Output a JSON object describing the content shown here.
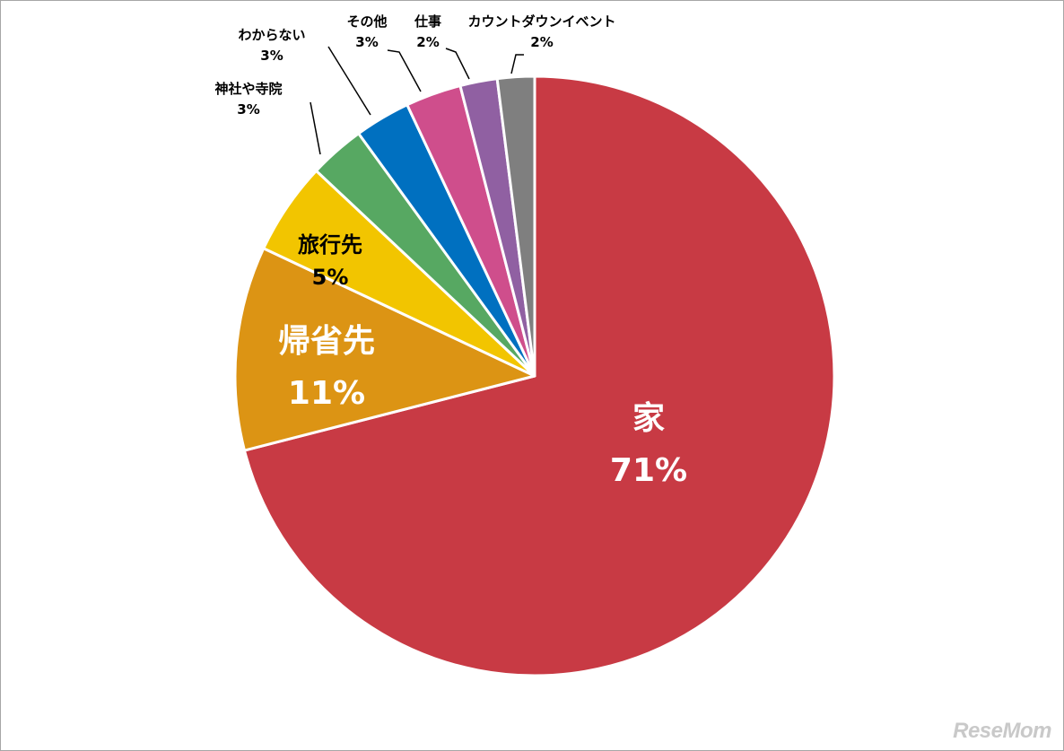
{
  "chart_data": {
    "type": "pie",
    "start": "top, clockwise",
    "slices": [
      {
        "label": "家",
        "value": 71,
        "display": "71%",
        "color": "#c83a44",
        "label_style": "inside-large",
        "label_color": "#ffffff"
      },
      {
        "label": "帰省先",
        "value": 11,
        "display": "11%",
        "color": "#dc9414",
        "label_style": "inside-large",
        "label_color": "#ffffff"
      },
      {
        "label": "旅行先",
        "value": 5,
        "display": "5%",
        "color": "#f2c500",
        "label_style": "inside-medium",
        "label_color": "#000000"
      },
      {
        "label": "神社や寺院",
        "value": 3,
        "display": "3%",
        "color": "#57a862",
        "label_style": "callout",
        "label_color": "#000000"
      },
      {
        "label": "わからない",
        "value": 3,
        "display": "3%",
        "color": "#0070c0",
        "label_style": "callout",
        "label_color": "#000000"
      },
      {
        "label": "その他",
        "value": 3,
        "display": "3%",
        "color": "#cf4e8c",
        "label_style": "callout",
        "label_color": "#000000"
      },
      {
        "label": "仕事",
        "value": 2,
        "display": "2%",
        "color": "#9060a2",
        "label_style": "callout",
        "label_color": "#000000"
      },
      {
        "label": "カウントダウンイベント",
        "value": 2,
        "display": "2%",
        "color": "#7f7f7f",
        "label_style": "callout",
        "label_color": "#000000"
      }
    ]
  },
  "watermark": {
    "text": "ReseMom"
  }
}
